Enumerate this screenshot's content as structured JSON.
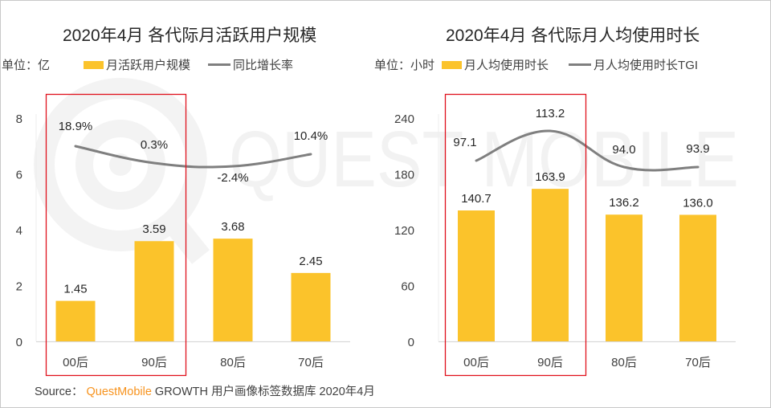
{
  "colors": {
    "bar": "#fbc32b",
    "line": "#7f7f7f",
    "highlight_box": "#e0111d",
    "axis": "#d9d9d9",
    "watermark": "#f2f2f2",
    "brand": "#f7931e"
  },
  "watermark": {
    "text": "QUEST MOBILE"
  },
  "source": {
    "prefix": "Source：",
    "brand": "QuestMobile",
    "rest": "GROWTH 用户画像标签数据库 2020年4月"
  },
  "chart_data": [
    {
      "type": "bar",
      "title": "2020年4月 各代际月活跃用户规模",
      "unit_label": "单位：亿",
      "categories": [
        "00后",
        "90后",
        "80后",
        "70后"
      ],
      "ylim": [
        0,
        8
      ],
      "yticks": [
        0,
        2,
        4,
        6,
        8
      ],
      "ytick_labels": [
        "0",
        "2",
        "4",
        "6",
        "8"
      ],
      "grid": false,
      "legend_placement": "top",
      "highlight_categories": [
        "00后",
        "90后"
      ],
      "series": [
        {
          "name": "月活跃用户规模",
          "kind": "bar",
          "values": [
            1.45,
            3.59,
            3.68,
            2.45
          ],
          "labels": [
            "1.45",
            "3.59",
            "3.68",
            "2.45"
          ]
        },
        {
          "name": "同比增长率",
          "kind": "line",
          "values_percent": [
            18.9,
            0.3,
            -2.4,
            10.4
          ],
          "labels": [
            "18.9%",
            "0.3%",
            "-2.4%",
            "10.4%"
          ]
        }
      ]
    },
    {
      "type": "bar",
      "title": "2020年4月 各代际月人均使用时长",
      "unit_label": "单位：小时",
      "categories": [
        "00后",
        "90后",
        "80后",
        "70后"
      ],
      "ylim": [
        0,
        240
      ],
      "yticks": [
        0,
        60,
        120,
        180,
        240
      ],
      "ytick_labels": [
        "0",
        "60",
        "120",
        "180",
        "240"
      ],
      "grid": false,
      "legend_placement": "top",
      "highlight_categories": [
        "00后",
        "90后"
      ],
      "series": [
        {
          "name": "月人均使用时长",
          "kind": "bar",
          "values": [
            140.7,
            163.9,
            136.2,
            136.0
          ],
          "labels": [
            "140.7",
            "163.9",
            "136.2",
            "136.0"
          ]
        },
        {
          "name": "月人均使用时长TGI",
          "kind": "line",
          "values": [
            97.1,
            113.2,
            94.0,
            93.9
          ],
          "labels": [
            "97.1",
            "113.2",
            "94.0",
            "93.9"
          ]
        }
      ]
    }
  ]
}
